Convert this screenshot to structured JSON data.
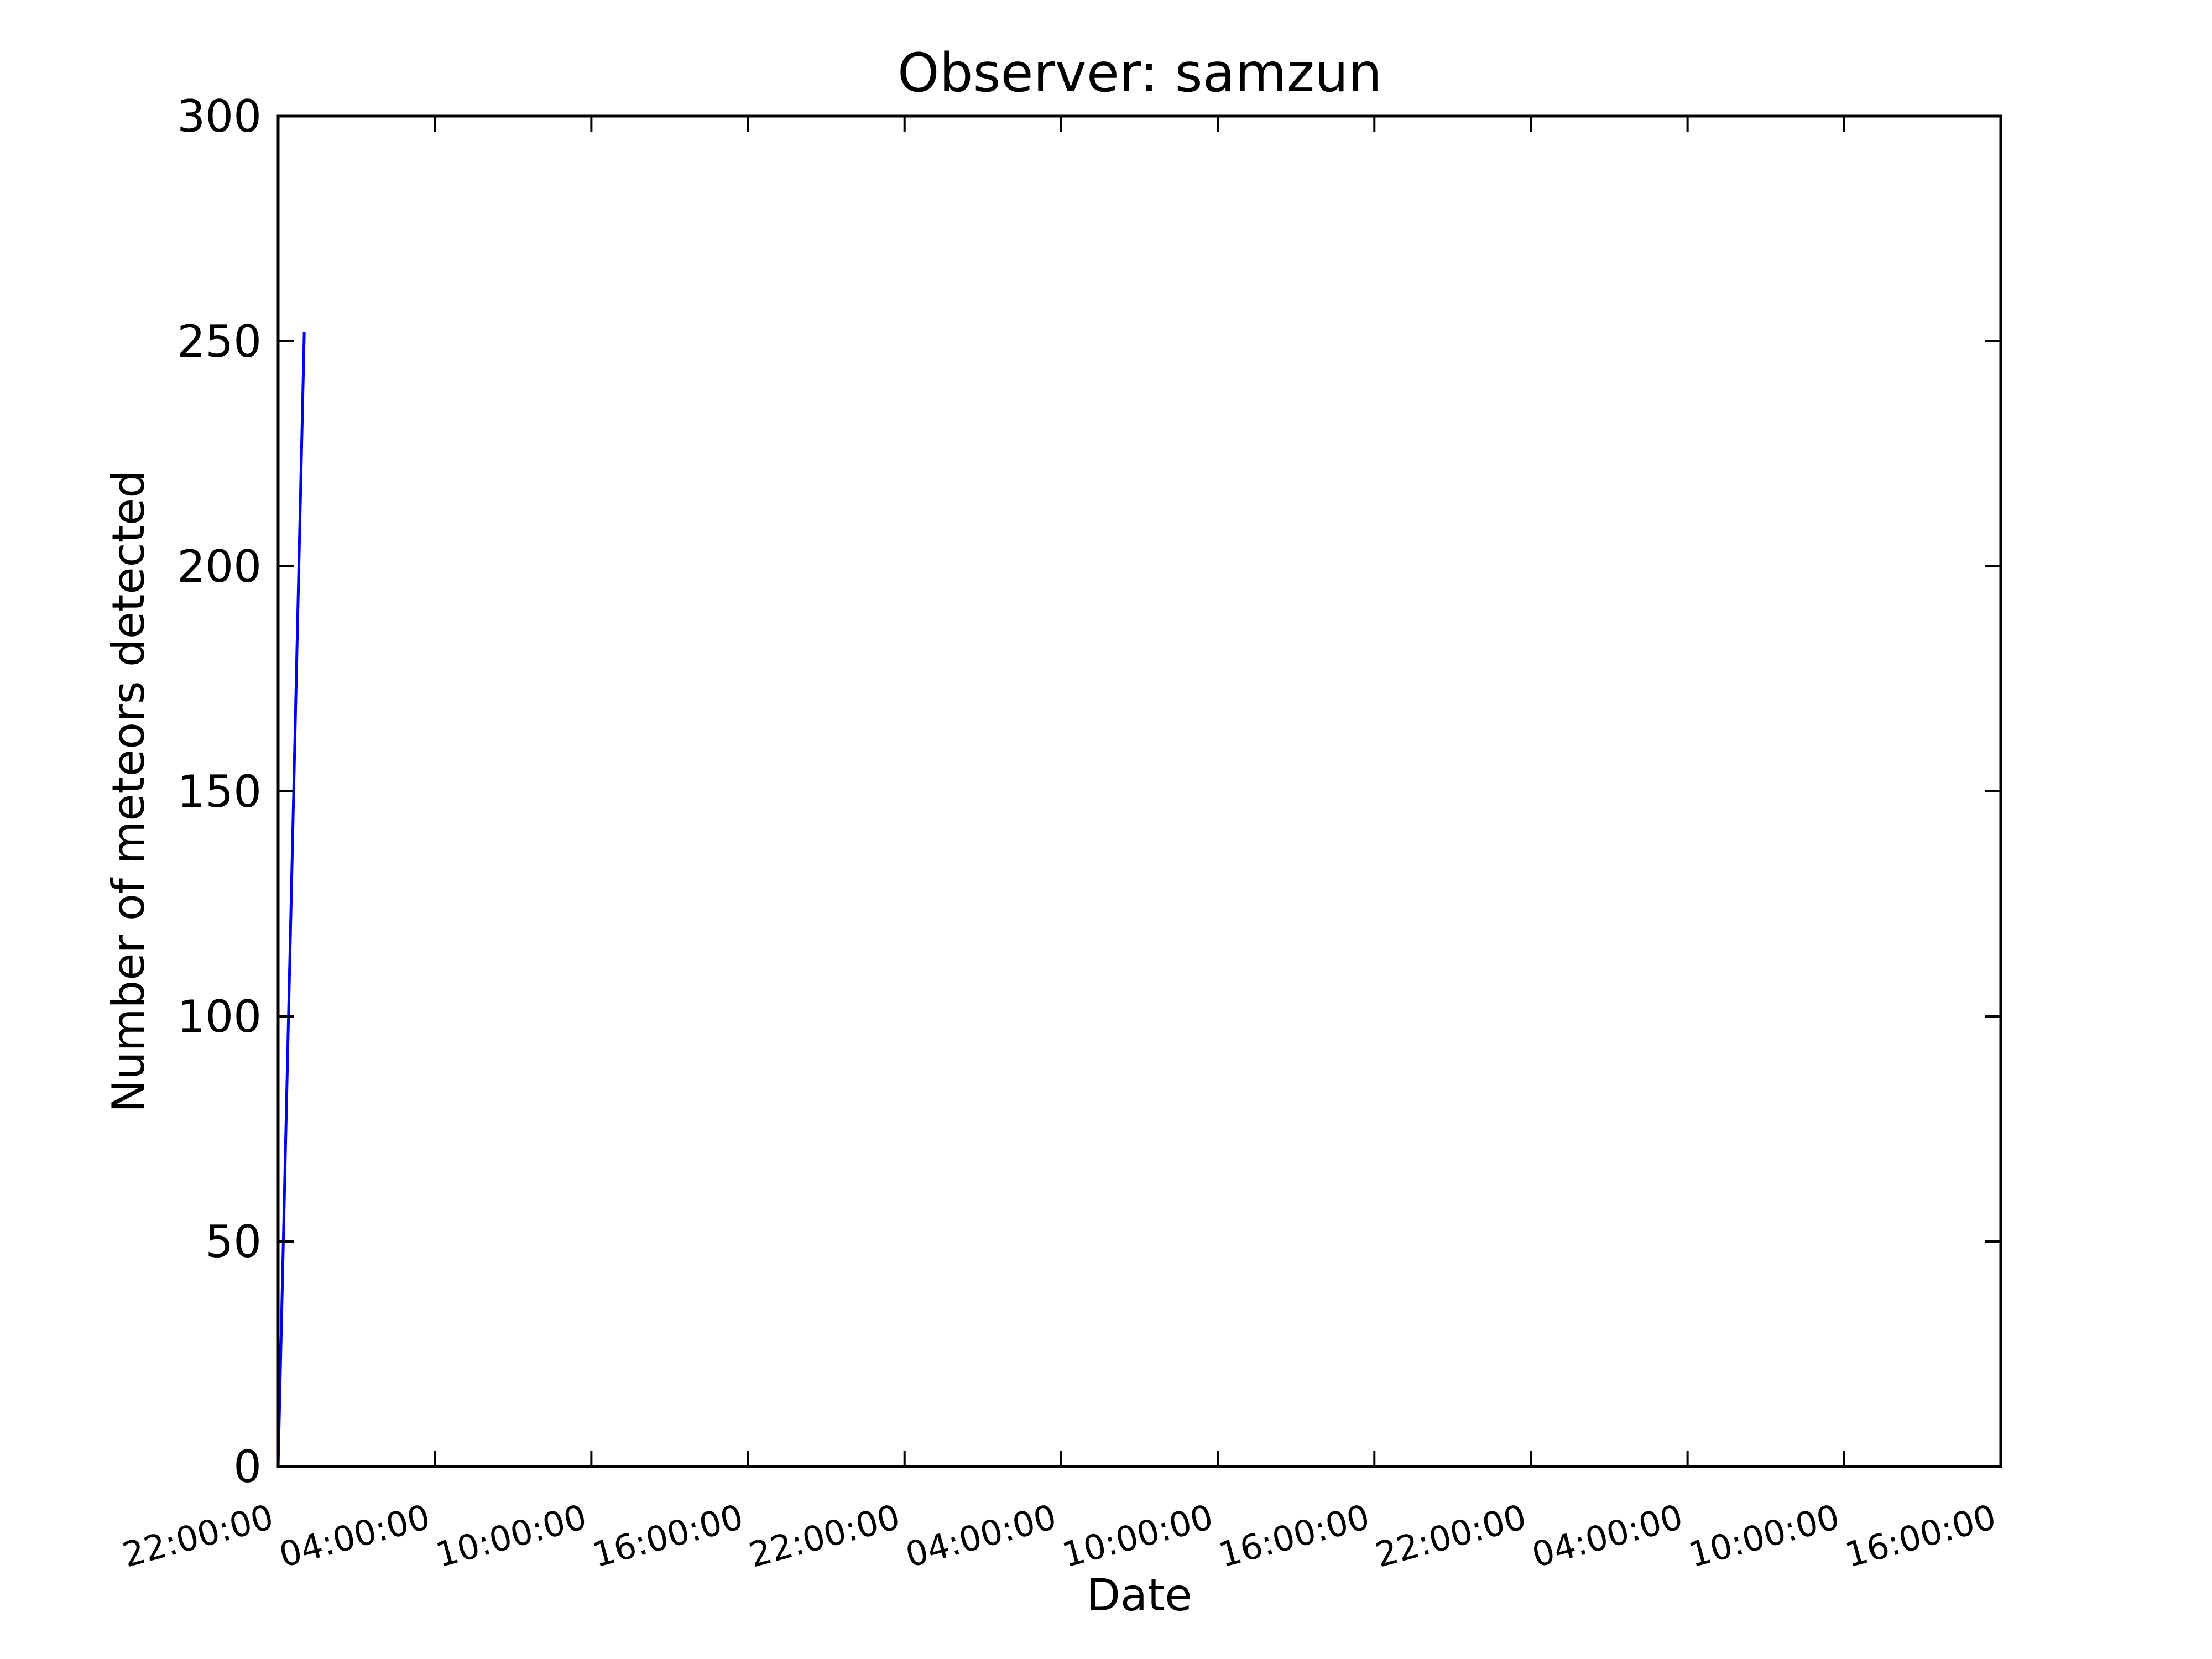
{
  "chart_data": {
    "type": "line",
    "title": "Observer: samzun",
    "xlabel": "Date",
    "ylabel": "Number of meteors detected",
    "x_tick_labels": [
      "22:00:00",
      "04:00:00",
      "10:00:00",
      "16:00:00",
      "22:00:00",
      "04:00:00",
      "10:00:00",
      "16:00:00",
      "22:00:00",
      "04:00:00",
      "10:00:00",
      "16:00:00"
    ],
    "x_tick_hours": [
      0,
      6,
      12,
      18,
      24,
      30,
      36,
      42,
      48,
      54,
      60,
      66
    ],
    "x_range_hours": [
      0,
      66
    ],
    "ylim": [
      0,
      300
    ],
    "y_ticks": [
      0,
      50,
      100,
      150,
      200,
      250,
      300
    ],
    "grid": false,
    "series": [
      {
        "color": "#0000ff",
        "points": [
          {
            "x": "22:00:00",
            "x_hours": 0,
            "y": 0
          },
          {
            "x": "23:00:00",
            "x_hours": 1,
            "y": 252
          }
        ]
      }
    ]
  }
}
